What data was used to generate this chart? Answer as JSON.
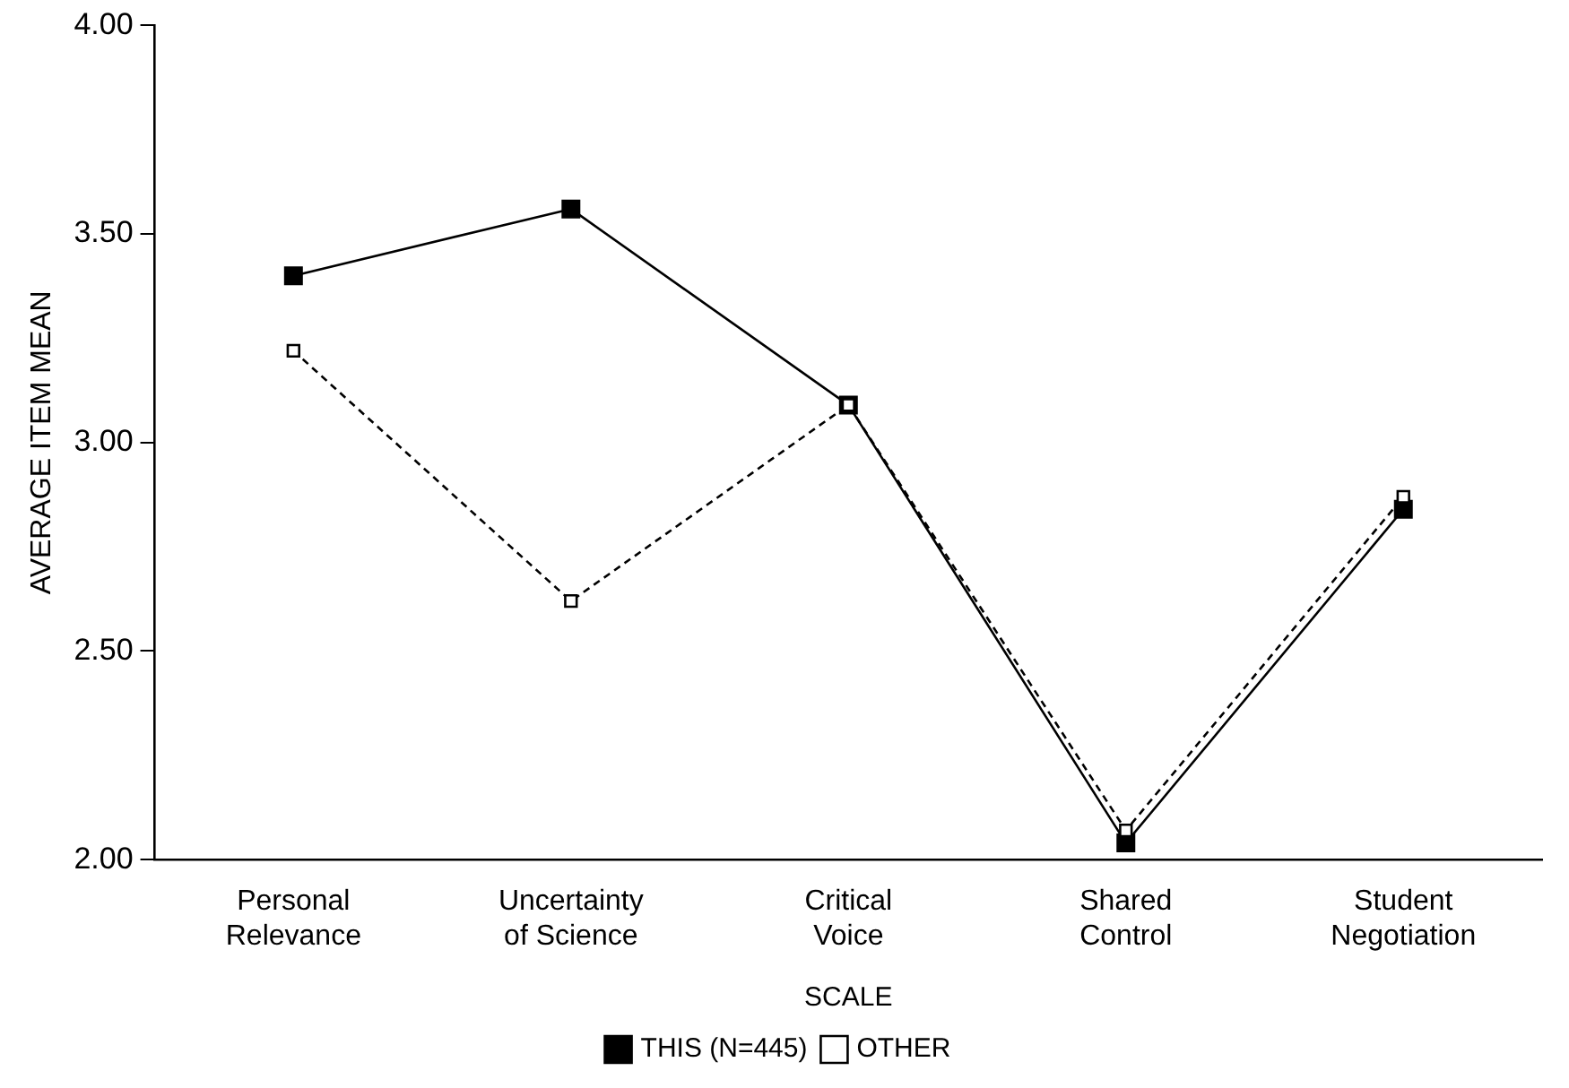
{
  "chart_data": {
    "type": "line",
    "xlabel": "SCALE",
    "ylabel": "AVERAGE ITEM MEAN",
    "categories": [
      "Personal Relevance",
      "Uncertainty of Science",
      "Critical Voice",
      "Shared Control",
      "Student Negotiation"
    ],
    "series": [
      {
        "name": "THIS (N=445)",
        "color": "#000000",
        "values": [
          3.4,
          3.56,
          3.09,
          2.04,
          2.84
        ],
        "line_style": "solid"
      },
      {
        "name": "OTHER",
        "color": "#000000",
        "values": [
          3.22,
          2.62,
          3.09,
          2.07,
          2.87
        ],
        "line_style": "dashed"
      }
    ],
    "ylim": [
      2,
      4
    ],
    "yticks": [
      {
        "value": 2,
        "label": "2.00"
      },
      {
        "value": 2.5,
        "label": "2.50"
      },
      {
        "value": 3,
        "label": "3.00"
      },
      {
        "value": 3.5,
        "label": "3.50"
      },
      {
        "value": 4,
        "label": "4.00"
      }
    ],
    "grid": false,
    "legend": "bottom",
    "marker": "square"
  }
}
